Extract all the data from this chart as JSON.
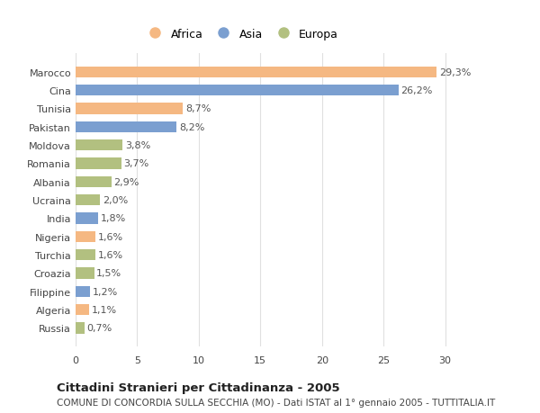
{
  "categories": [
    "Russia",
    "Algeria",
    "Filippine",
    "Croazia",
    "Turchia",
    "Nigeria",
    "India",
    "Ucraina",
    "Albania",
    "Romania",
    "Moldova",
    "Pakistan",
    "Tunisia",
    "Cina",
    "Marocco"
  ],
  "values": [
    0.7,
    1.1,
    1.2,
    1.5,
    1.6,
    1.6,
    1.8,
    2.0,
    2.9,
    3.7,
    3.8,
    8.2,
    8.7,
    26.2,
    29.3
  ],
  "labels": [
    "0,7%",
    "1,1%",
    "1,2%",
    "1,5%",
    "1,6%",
    "1,6%",
    "1,8%",
    "2,0%",
    "2,9%",
    "3,7%",
    "3,8%",
    "8,2%",
    "8,7%",
    "26,2%",
    "29,3%"
  ],
  "continents": [
    "Europa",
    "Africa",
    "Asia",
    "Europa",
    "Europa",
    "Africa",
    "Asia",
    "Europa",
    "Europa",
    "Europa",
    "Europa",
    "Asia",
    "Africa",
    "Asia",
    "Africa"
  ],
  "colors": {
    "Africa": "#F5B882",
    "Asia": "#7B9FD0",
    "Europa": "#B2C080"
  },
  "africa_color": "#F5B882",
  "asia_color": "#7B9FD0",
  "europa_color": "#B2C080",
  "title": "Cittadini Stranieri per Cittadinanza - 2005",
  "subtitle": "COMUNE DI CONCORDIA SULLA SECCHIA (MO) - Dati ISTAT al 1° gennaio 2005 - TUTTITALIA.IT",
  "xlim": [
    0,
    32
  ],
  "xticks": [
    0,
    5,
    10,
    15,
    20,
    25,
    30
  ],
  "background_color": "#ffffff",
  "grid_color": "#e0e0e0",
  "bar_height": 0.6,
  "label_fontsize": 8,
  "title_fontsize": 9.5,
  "subtitle_fontsize": 7.5,
  "tick_fontsize": 8
}
